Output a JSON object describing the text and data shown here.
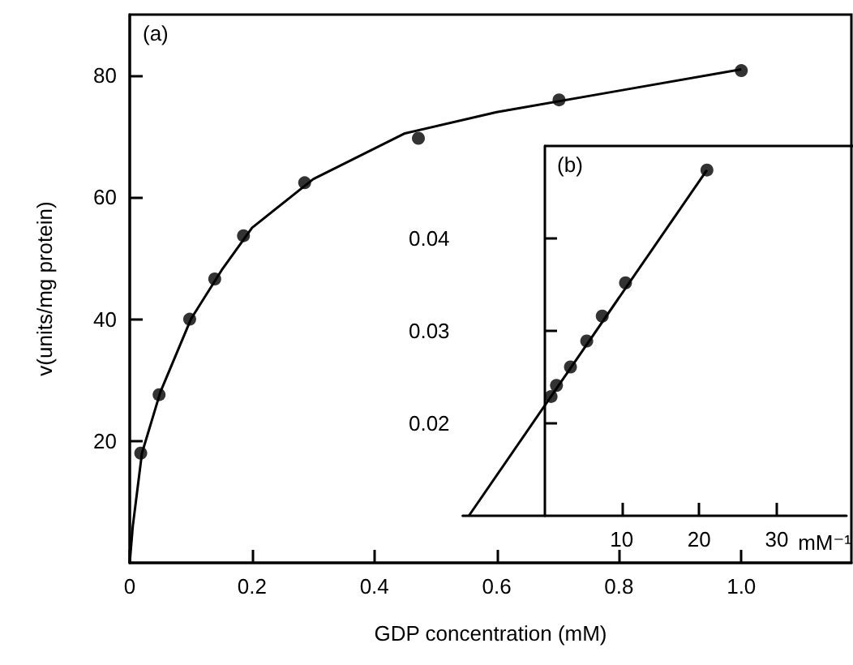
{
  "chart_data": [
    {
      "type": "scatter",
      "xlabel": "GDP concentration (mM)",
      "ylabel": "v(units/mg protein)",
      "annotations": [
        "(a)"
      ],
      "xlim": [
        0,
        1.18
      ],
      "ylim": [
        0,
        90
      ],
      "xticks": [
        0,
        0.2,
        0.4,
        0.6,
        0.8,
        {
          "value": 1,
          "label": "1.0"
        }
      ],
      "yticks": [
        20,
        40,
        60,
        80
      ],
      "grid": false,
      "series": [
        {
          "marker": "circle",
          "color": "#000000",
          "x": [
            0.018,
            0.048,
            0.098,
            0.139,
            0.186,
            0.286,
            0.472,
            0.702,
            1.0
          ],
          "values": [
            18,
            27.6,
            40,
            46.6,
            53.7,
            62.4,
            69.7,
            76,
            80.8
          ]
        },
        {
          "type": "line",
          "color": "#000000",
          "x": [
            0,
            0.005,
            0.02,
            0.05,
            0.1,
            0.15,
            0.2,
            0.3,
            0.45,
            0.6,
            0.8,
            1.0
          ],
          "values": [
            0,
            6,
            18,
            28,
            40,
            48,
            55,
            63,
            70.5,
            74,
            77.5,
            81
          ]
        }
      ]
    },
    {
      "type": "scatter",
      "xlabel": "mM⁻¹",
      "annotations": [
        "(b)"
      ],
      "xlim": [
        -10.5,
        39
      ],
      "ylim": [
        0.01,
        0.05
      ],
      "xticks": [
        10,
        20,
        30
      ],
      "yticks": [
        0.02,
        0.03,
        0.04
      ],
      "grid": false,
      "series": [
        {
          "marker": "circle",
          "color": "#000000",
          "x": [
            0.9,
            1.6,
            3.4,
            5.5,
            7.5,
            10.5,
            21
          ],
          "values": [
            0.0229,
            0.0241,
            0.0261,
            0.0289,
            0.0316,
            0.0352,
            0.0474
          ]
        },
        {
          "type": "line",
          "color": "#000000",
          "x": [
            -9.7,
            21
          ],
          "values": [
            0.01,
            0.0474
          ]
        }
      ]
    }
  ]
}
